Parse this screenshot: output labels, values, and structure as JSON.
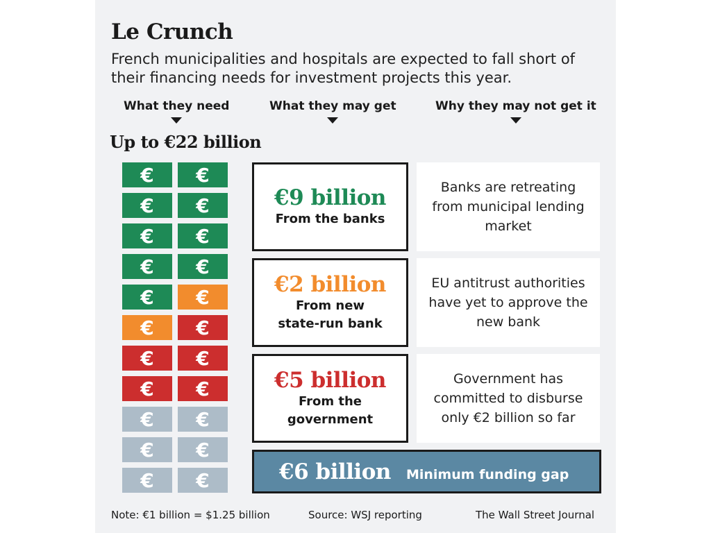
{
  "title": "Le Crunch",
  "subtitle": "French municipalities and hospitals are expected to fall short of their financing needs for investment projects this year.",
  "columns": [
    "What they need",
    "What they may get",
    "Why they may not get it"
  ],
  "need_total": "Up to €22 billion",
  "note_symbol": "€",
  "colors": {
    "banks": "#1e8a56",
    "state_bank": "#f28c2d",
    "government": "#cc2e2e",
    "gap": "#adbcc8",
    "gap_box": "#5b88a3"
  },
  "notes_count": {
    "banks": 9,
    "state_bank": 2,
    "government": 5,
    "gap": 6
  },
  "sources": [
    {
      "amount": "€9 billion",
      "label_lines": [
        "From the banks"
      ],
      "reason": "Banks are retreating from municipal lending market",
      "color": "#1e8a56"
    },
    {
      "amount": "€2 billion",
      "label_lines": [
        "From new",
        "state-run bank"
      ],
      "reason": "EU antitrust authorities have yet to approve the new bank",
      "color": "#f28c2d"
    },
    {
      "amount": "€5 billion",
      "label_lines": [
        "From the",
        "government"
      ],
      "reason": "Government has committed to disburse only €2 billion so far",
      "color": "#cc2e2e"
    }
  ],
  "gap": {
    "amount": "€6 billion",
    "label": "Minimum funding gap"
  },
  "footer": {
    "note": "Note: €1 billion = $1.25 billion",
    "source": "Source: WSJ reporting",
    "credit": "The Wall Street Journal"
  }
}
